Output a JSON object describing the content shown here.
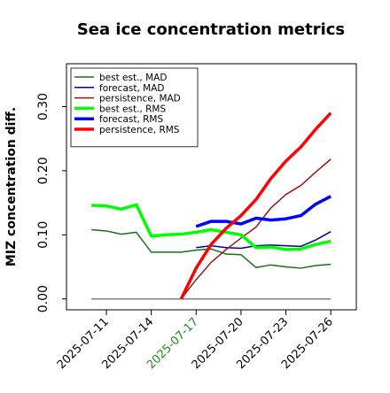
{
  "chart_data": {
    "type": "line",
    "title": "Sea ice concentration metrics",
    "ylabel": "MIZ concentration diff.",
    "x": [
      "2025-07-10",
      "2025-07-11",
      "2025-07-12",
      "2025-07-13",
      "2025-07-14",
      "2025-07-15",
      "2025-07-16",
      "2025-07-17",
      "2025-07-18",
      "2025-07-19",
      "2025-07-20",
      "2025-07-21",
      "2025-07-22",
      "2025-07-23",
      "2025-07-24",
      "2025-07-25",
      "2025-07-26"
    ],
    "series": [
      {
        "name": "best est., MAD",
        "color": "#1a6e1a",
        "linewidth": 1.5,
        "values": [
          0.108,
          0.106,
          0.101,
          0.104,
          0.073,
          0.073,
          0.073,
          0.076,
          0.078,
          0.07,
          0.069,
          0.049,
          0.053,
          0.05,
          0.048,
          0.052,
          0.054
        ]
      },
      {
        "name": "forecast,  MAD",
        "color": "#00008b",
        "linewidth": 1.5,
        "values": [
          null,
          null,
          null,
          null,
          null,
          null,
          null,
          0.08,
          0.083,
          0.08,
          0.079,
          0.083,
          0.084,
          0.083,
          0.082,
          0.092,
          0.105
        ]
      },
      {
        "name": "persistence, MAD",
        "color": "#8b1a1a",
        "linewidth": 1.5,
        "values": [
          null,
          null,
          null,
          null,
          null,
          null,
          0.0,
          0.03,
          0.057,
          0.077,
          0.095,
          0.112,
          0.142,
          0.163,
          0.177,
          0.198,
          0.218
        ]
      },
      {
        "name": "best est., RMS",
        "color": "#00ff00",
        "linewidth": 3.5,
        "values": [
          0.146,
          0.145,
          0.14,
          0.147,
          0.098,
          0.1,
          0.101,
          0.104,
          0.108,
          0.104,
          0.1,
          0.08,
          0.081,
          0.077,
          0.078,
          0.085,
          0.09
        ]
      },
      {
        "name": "forecast,  RMS",
        "color": "#0000ff",
        "linewidth": 3.5,
        "values": [
          null,
          null,
          null,
          null,
          null,
          null,
          null,
          0.113,
          0.121,
          0.121,
          0.117,
          0.126,
          0.123,
          0.125,
          0.13,
          0.148,
          0.16
        ]
      },
      {
        "name": "persistence, RMS",
        "color": "#ff0000",
        "linewidth": 3.5,
        "values": [
          null,
          null,
          null,
          null,
          null,
          null,
          0.0,
          0.048,
          0.085,
          0.11,
          0.13,
          0.155,
          0.188,
          0.215,
          0.237,
          0.265,
          0.29
        ]
      }
    ],
    "hline": 0.0,
    "hline_color": "#808080",
    "xlim": [
      "2025-07-08T08:00",
      "2025-07-27T17:00"
    ],
    "xticks": [
      "2025-07-11",
      "2025-07-14",
      "2025-07-17",
      "2025-07-20",
      "2025-07-23",
      "2025-07-26"
    ],
    "highlight_xtick": "2025-07-17",
    "highlight_color": "#228b22",
    "ylim": [
      -0.017,
      0.367
    ],
    "yticks": [
      {
        "value": 0,
        "label": "0.00"
      },
      {
        "value": 0.1,
        "label": "0.10"
      },
      {
        "value": 0.2,
        "label": "0.20"
      },
      {
        "value": 0.3,
        "label": "0.30"
      }
    ],
    "legend": "upper left"
  }
}
